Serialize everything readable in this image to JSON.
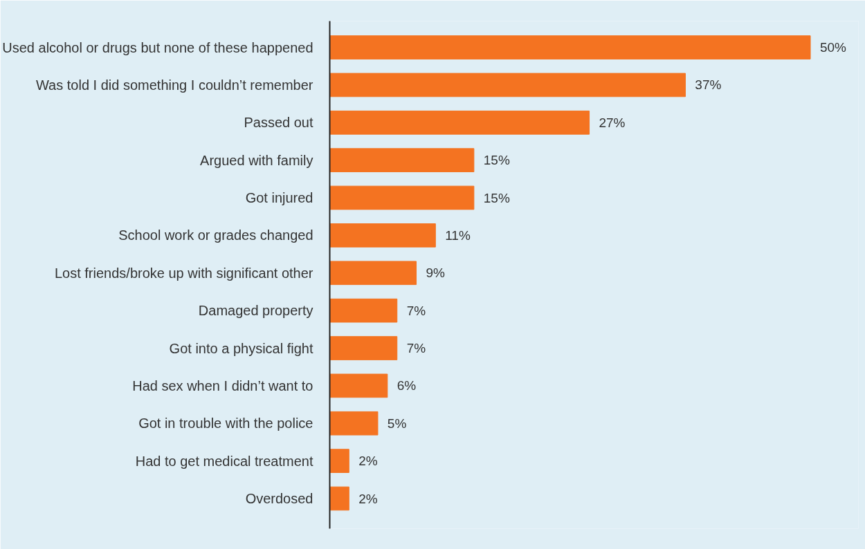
{
  "chart_data": {
    "type": "bar",
    "orientation": "horizontal",
    "categories": [
      "Used alcohol or drugs but none of these happened",
      "Was told I did something I couldn’t remember",
      "Passed out",
      "Argued with family",
      "Got injured",
      "School work or grades changed",
      "Lost friends/broke up with significant other",
      "Damaged property",
      "Got into a physical fight",
      "Had sex when I didn’t want to",
      "Got in trouble with the police",
      "Had to get medical treatment",
      "Overdosed"
    ],
    "values": [
      50,
      37,
      27,
      15,
      15,
      11,
      9,
      7,
      7,
      6,
      5,
      2,
      2
    ],
    "value_labels": [
      "50%",
      "37%",
      "27%",
      "15%",
      "15%",
      "11%",
      "9%",
      "7%",
      "7%",
      "6%",
      "5%",
      "2%",
      "2%"
    ],
    "color": "#f47321",
    "grid": false
  }
}
